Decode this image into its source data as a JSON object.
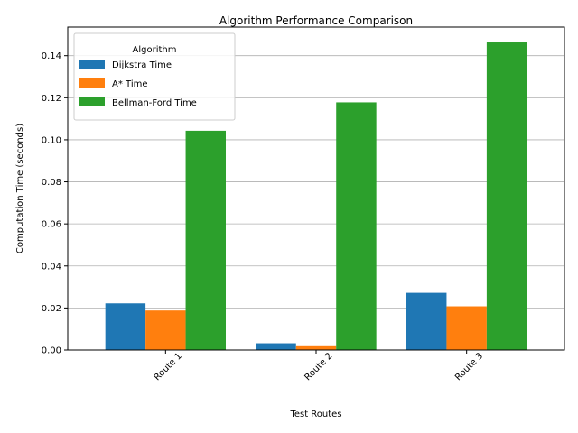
{
  "chart_data": {
    "type": "bar",
    "title": "Algorithm Performance Comparison",
    "xlabel": "Test Routes",
    "ylabel": "Computation Time (seconds)",
    "categories": [
      "Route 1",
      "Route 2",
      "Route 3"
    ],
    "series": [
      {
        "name": "Dijkstra Time",
        "color": "#1f77b4",
        "values": [
          0.0222,
          0.0032,
          0.0272
        ]
      },
      {
        "name": "A* Time",
        "color": "#ff7f0e",
        "values": [
          0.0188,
          0.0018,
          0.0208
        ]
      },
      {
        "name": "Bellman-Ford Time",
        "color": "#2ca02c",
        "values": [
          0.1043,
          0.1178,
          0.1463
        ]
      }
    ],
    "ylim": [
      0,
      0.1536
    ],
    "yticks": [
      "0.00",
      "0.02",
      "0.04",
      "0.06",
      "0.08",
      "0.10",
      "0.12",
      "0.14"
    ],
    "grid": "horizontal",
    "legend": {
      "title": "Algorithm",
      "position": "top-left"
    },
    "xtick_rotation": 45
  }
}
